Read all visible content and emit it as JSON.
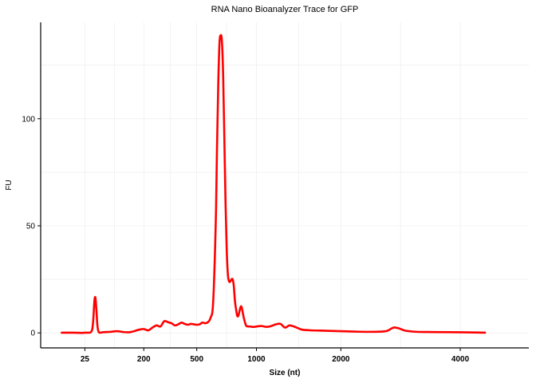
{
  "chart_data": {
    "type": "line",
    "title": "RNA Nano Bioanalyzer Trace for GFP",
    "xlabel": "Size (nt)",
    "ylabel": "FU",
    "x_scale": "sqrt",
    "xlim": [
      0,
      5000
    ],
    "ylim": [
      -7,
      145
    ],
    "x_ticks": [
      25,
      200,
      500,
      1000,
      2000,
      4000
    ],
    "x_tick_labels": [
      "25",
      "200",
      "500",
      "1000",
      "2000",
      "4000"
    ],
    "y_ticks": [
      0,
      50,
      100
    ],
    "y_tick_labels": [
      "0",
      "50",
      "100"
    ],
    "grid": true,
    "series": [
      {
        "color": "#ff0000",
        "x": [
          2,
          10,
          20,
          25,
          30,
          35,
          38,
          40,
          42,
          44,
          46,
          48,
          50,
          52,
          55,
          60,
          70,
          80,
          100,
          120,
          140,
          150,
          160,
          170,
          180,
          200,
          220,
          240,
          260,
          280,
          300,
          320,
          340,
          360,
          380,
          400,
          420,
          440,
          460,
          480,
          500,
          520,
          540,
          560,
          580,
          600,
          620,
          640,
          650,
          660,
          670,
          680,
          690,
          700,
          710,
          720,
          730,
          740,
          750,
          760,
          770,
          780,
          790,
          800,
          810,
          820,
          830,
          840,
          850,
          860,
          880,
          900,
          920,
          940,
          960,
          980,
          1000,
          1050,
          1100,
          1150,
          1200,
          1250,
          1300,
          1350,
          1400,
          1450,
          1500,
          1600,
          1800,
          2000,
          2200,
          2400,
          2600,
          2700,
          2800,
          2900,
          3000,
          3200,
          3500,
          4000,
          4500
        ],
        "values": [
          0.1,
          0.1,
          0,
          0.1,
          0.1,
          0.3,
          2,
          7,
          15,
          16.5,
          11,
          4,
          1,
          0.2,
          0.1,
          0.3,
          0.4,
          0.5,
          0.8,
          0.4,
          0.3,
          0.5,
          0.8,
          1.2,
          1.5,
          1.8,
          1.2,
          2.5,
          3.5,
          3,
          5.5,
          5,
          4.5,
          3.5,
          4,
          4.8,
          4.2,
          3.8,
          4.2,
          4,
          3.8,
          4,
          4.8,
          4.5,
          5,
          7,
          14,
          50,
          85,
          115,
          135,
          139,
          136,
          120,
          90,
          60,
          38,
          27,
          24,
          24,
          25,
          25,
          22,
          15,
          11,
          8,
          8,
          10,
          12,
          12,
          7,
          3.5,
          3,
          3,
          2.8,
          2.8,
          3,
          3.2,
          2.8,
          3.2,
          4,
          4.2,
          2.5,
          3.5,
          3,
          2.2,
          1.5,
          1.2,
          1,
          0.8,
          0.6,
          0.5,
          0.6,
          1,
          2.5,
          2,
          1,
          0.5,
          0.4,
          0.3,
          0.1
        ]
      }
    ]
  }
}
